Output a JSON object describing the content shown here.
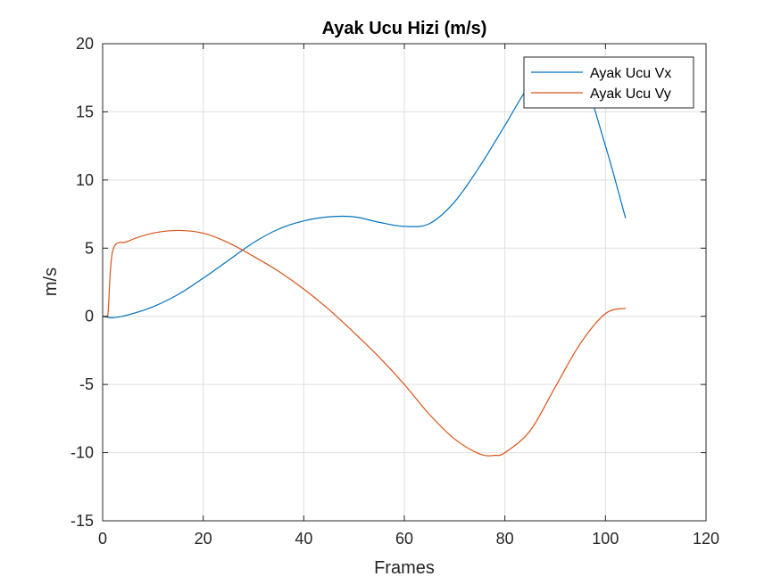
{
  "chart_data": {
    "type": "line",
    "title": "Ayak Ucu Hizi (m/s)",
    "xlabel": "Frames",
    "ylabel": "m/s",
    "xlim": [
      0,
      120
    ],
    "ylim": [
      -15,
      20
    ],
    "xticks": [
      0,
      20,
      40,
      60,
      80,
      100,
      120
    ],
    "yticks": [
      -15,
      -10,
      -5,
      0,
      5,
      10,
      15,
      20
    ],
    "grid": true,
    "legend_position": "top-right",
    "series": [
      {
        "name": "Ayak Ucu Vx",
        "color": "#0072BD",
        "x": [
          0,
          2,
          5,
          10,
          15,
          20,
          25,
          30,
          35,
          40,
          45,
          50,
          55,
          60,
          65,
          70,
          75,
          80,
          85,
          90,
          95,
          100,
          104
        ],
        "y": [
          0,
          -0.1,
          0.1,
          0.7,
          1.6,
          2.8,
          4.1,
          5.4,
          6.4,
          7.0,
          7.3,
          7.3,
          6.9,
          6.6,
          6.8,
          8.4,
          11.0,
          14.0,
          17.0,
          18.6,
          18.0,
          12.5,
          7.2
        ]
      },
      {
        "name": "Ayak Ucu Vy",
        "color": "#D95319",
        "x": [
          0,
          1,
          2,
          5,
          10,
          15,
          20,
          25,
          30,
          35,
          40,
          45,
          50,
          55,
          60,
          65,
          70,
          75,
          78,
          80,
          85,
          90,
          95,
          100,
          104
        ],
        "y": [
          0,
          0,
          4.8,
          5.5,
          6.1,
          6.3,
          6.1,
          5.4,
          4.4,
          3.3,
          2.0,
          0.5,
          -1.2,
          -3.0,
          -5.0,
          -7.2,
          -9.0,
          -10.1,
          -10.2,
          -10.0,
          -8.4,
          -5.2,
          -2.0,
          0.2,
          0.6
        ]
      }
    ]
  }
}
